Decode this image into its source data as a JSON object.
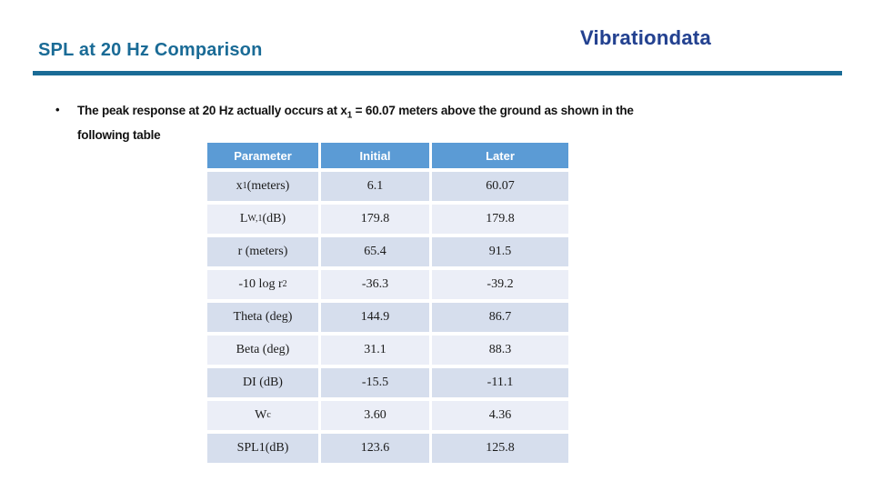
{
  "colors": {
    "title": "#1A6B96",
    "rule": "#1A6B96",
    "logo": "#23418F",
    "header_bg": "#5B9BD5",
    "row_dark": "#D6DEED",
    "row_light": "#EBEEF7",
    "body_text": "#1B1B1B"
  },
  "header": {
    "title": "SPL at 20 Hz Comparison",
    "logo": "Vibrationdata"
  },
  "bullet": {
    "marker": "•",
    "segments": [
      {
        "t": "The peak response at 20 Hz actually occurs at x"
      },
      {
        "t": "1",
        "s": "sub"
      },
      {
        "t": " = 60.07 meters above the ground as shown in the"
      },
      {
        "s": "br"
      },
      {
        "t": "following table"
      }
    ]
  },
  "table": {
    "headers": [
      "Parameter",
      "Initial",
      "Later"
    ],
    "rows": [
      {
        "param": [
          {
            "t": "x"
          },
          {
            "t": "1",
            "s": "sub"
          },
          {
            "t": " (meters)"
          }
        ],
        "initial": "6.1",
        "later": "60.07"
      },
      {
        "param": [
          {
            "t": "L"
          },
          {
            "t": "W,1",
            "s": "sub"
          },
          {
            "t": " (dB)"
          }
        ],
        "initial": "179.8",
        "later": "179.8"
      },
      {
        "param": [
          {
            "t": "r (meters)"
          }
        ],
        "initial": "65.4",
        "later": "91.5"
      },
      {
        "param": [
          {
            "t": "-10 log r"
          },
          {
            "t": "2",
            "s": "sup"
          }
        ],
        "initial": "-36.3",
        "later": "-39.2"
      },
      {
        "param": [
          {
            "t": "Theta (deg)"
          }
        ],
        "initial": "144.9",
        "later": "86.7"
      },
      {
        "param": [
          {
            "t": "Beta (deg)"
          }
        ],
        "initial": "31.1",
        "later": "88.3"
      },
      {
        "param": [
          {
            "t": "DI (dB)"
          }
        ],
        "initial": "-15.5",
        "later": "-11.1"
      },
      {
        "param": [
          {
            "t": "W"
          },
          {
            "t": "c",
            "s": "sub"
          }
        ],
        "initial": "3.60",
        "later": "4.36"
      },
      {
        "param": [
          {
            "t": "SPL1(dB)"
          }
        ],
        "initial": "123.6",
        "later": "125.8"
      }
    ]
  }
}
